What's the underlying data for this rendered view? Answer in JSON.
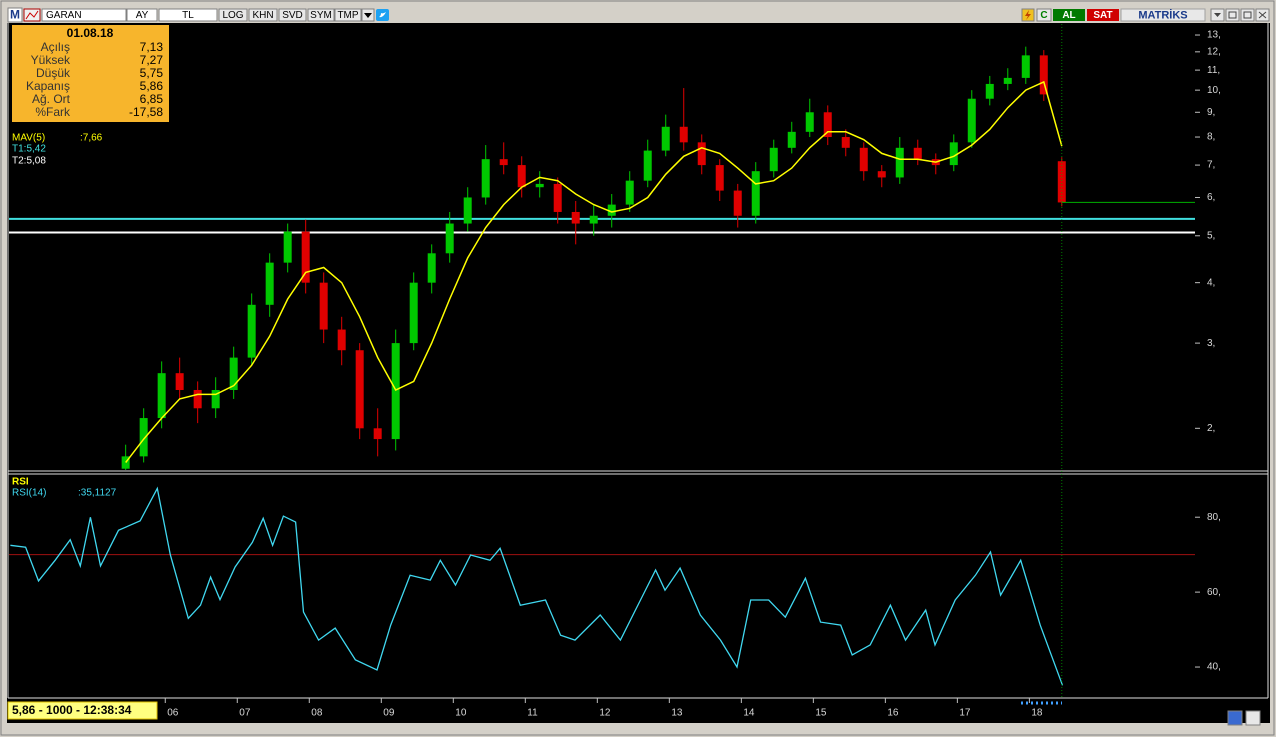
{
  "toolbar": {
    "logo": "M",
    "symbol": "GARAN",
    "period": "AY",
    "currency": "TL",
    "buttons": [
      "LOG",
      "KHN",
      "SVD",
      "SYM",
      "TMP"
    ],
    "refresh": "C",
    "buy": "AL",
    "sell": "SAT",
    "brand": "MATRİKS"
  },
  "info_box": {
    "date": "01.08.18",
    "rows": [
      {
        "label": "Açılış",
        "value": "7,13"
      },
      {
        "label": "Yüksek",
        "value": "7,27"
      },
      {
        "label": "Düşük",
        "value": "5,75"
      },
      {
        "label": "Kapanış",
        "value": "5,86"
      },
      {
        "label": "Ağ. Ort",
        "value": "6,85"
      },
      {
        "label": "%Fark",
        "value": "-17,58"
      }
    ]
  },
  "status": "5,86 - 1000 - 12:38:34",
  "chart_data": [
    {
      "type": "candlestick",
      "log_scale": true,
      "up_color": "#00c800",
      "down_color": "#e00000",
      "last_color": "#00b000",
      "x": [
        5.45,
        5.7,
        5.95,
        6.2,
        6.45,
        6.7,
        6.95,
        7.2,
        7.45,
        7.7,
        7.95,
        8.2,
        8.45,
        8.7,
        8.95,
        9.2,
        9.45,
        9.7,
        9.95,
        10.2,
        10.45,
        10.7,
        10.95,
        11.2,
        11.45,
        11.7,
        11.95,
        12.2,
        12.45,
        12.7,
        12.95,
        13.2,
        13.45,
        13.7,
        13.95,
        14.2,
        14.45,
        14.7,
        14.95,
        15.2,
        15.45,
        15.7,
        15.95,
        16.2,
        16.45,
        16.7,
        16.95,
        17.2,
        17.45,
        17.7,
        17.95,
        18.2,
        18.45
      ],
      "open": [
        1.65,
        1.75,
        2.1,
        2.6,
        2.4,
        2.2,
        2.4,
        2.8,
        3.6,
        4.4,
        5.1,
        4.0,
        3.2,
        2.9,
        2.0,
        1.9,
        3.0,
        4.0,
        4.6,
        5.3,
        6.0,
        7.2,
        7.0,
        6.3,
        6.4,
        5.6,
        5.3,
        5.5,
        5.8,
        6.5,
        7.5,
        8.4,
        7.8,
        7.0,
        6.2,
        5.5,
        6.8,
        7.6,
        8.2,
        9.0,
        8.0,
        7.6,
        6.8,
        6.6,
        7.6,
        7.2,
        7.0,
        7.8,
        9.6,
        10.3,
        10.6,
        11.8,
        7.13
      ],
      "high": [
        1.85,
        2.2,
        2.75,
        2.8,
        2.5,
        2.55,
        2.95,
        3.8,
        4.6,
        5.3,
        5.4,
        4.2,
        3.4,
        3.0,
        2.2,
        3.2,
        4.2,
        4.8,
        5.6,
        6.3,
        7.7,
        7.8,
        7.3,
        6.8,
        6.6,
        5.9,
        5.8,
        6.1,
        6.8,
        7.9,
        8.9,
        10.1,
        8.1,
        7.2,
        6.4,
        7.1,
        7.9,
        8.6,
        9.6,
        9.3,
        8.3,
        7.8,
        7.0,
        8.0,
        7.9,
        7.4,
        8.1,
        10.0,
        10.7,
        11.1,
        12.3,
        12.1,
        7.27
      ],
      "low": [
        1.6,
        1.7,
        2.0,
        2.3,
        2.05,
        2.1,
        2.3,
        2.7,
        3.4,
        4.2,
        3.8,
        3.0,
        2.7,
        1.9,
        1.75,
        1.8,
        2.9,
        3.8,
        4.4,
        5.1,
        5.8,
        6.7,
        6.0,
        6.0,
        5.3,
        4.8,
        5.0,
        5.2,
        5.6,
        6.3,
        7.3,
        7.5,
        6.7,
        5.9,
        5.2,
        5.3,
        6.6,
        7.4,
        8.0,
        7.7,
        7.3,
        6.5,
        6.3,
        6.4,
        7.0,
        6.7,
        6.8,
        7.6,
        9.3,
        10.0,
        10.3,
        9.5,
        5.75
      ],
      "close": [
        1.75,
        2.1,
        2.6,
        2.4,
        2.2,
        2.4,
        2.8,
        3.6,
        4.4,
        5.1,
        4.0,
        3.2,
        2.9,
        2.0,
        1.9,
        3.0,
        4.0,
        4.6,
        5.3,
        6.0,
        7.2,
        7.0,
        6.3,
        6.4,
        5.6,
        5.3,
        5.5,
        5.8,
        6.5,
        7.5,
        8.4,
        7.8,
        7.0,
        6.2,
        5.5,
        6.8,
        7.6,
        8.2,
        9.0,
        8.0,
        7.6,
        6.8,
        6.6,
        7.6,
        7.2,
        7.0,
        7.8,
        9.6,
        10.3,
        10.6,
        11.8,
        9.8,
        5.86
      ],
      "lines": [
        {
          "name": "MAV(5)",
          "value_label": ":7,66",
          "color": "#ffff00",
          "values": [
            1.7,
            1.9,
            2.1,
            2.3,
            2.35,
            2.35,
            2.45,
            2.7,
            3.1,
            3.7,
            4.2,
            4.3,
            4.0,
            3.4,
            2.8,
            2.4,
            2.5,
            3.0,
            3.7,
            4.5,
            5.2,
            5.8,
            6.3,
            6.6,
            6.5,
            6.1,
            5.8,
            5.6,
            5.7,
            6.0,
            6.7,
            7.3,
            7.6,
            7.4,
            6.9,
            6.4,
            6.5,
            6.9,
            7.6,
            8.2,
            8.2,
            7.9,
            7.4,
            7.2,
            7.2,
            7.1,
            7.3,
            7.7,
            8.3,
            9.2,
            10.0,
            10.4,
            7.66
          ]
        }
      ],
      "levels": [
        {
          "label": "T1:5,42",
          "value": 5.42,
          "color": "#40e0e0"
        },
        {
          "label": "T2:5,08",
          "value": 5.08,
          "color": "#ffffff"
        }
      ],
      "ylim": [
        1.64,
        13.7
      ],
      "yticks": [
        {
          "value": 2,
          "label": "2,"
        },
        {
          "value": 3,
          "label": "3,"
        },
        {
          "value": 4,
          "label": "4,"
        },
        {
          "value": 5,
          "label": "5,"
        },
        {
          "value": 6,
          "label": "6,"
        },
        {
          "value": 7,
          "label": "7,"
        },
        {
          "value": 8,
          "label": "8,"
        },
        {
          "value": 9,
          "label": "9,"
        },
        {
          "value": 10,
          "label": "10,"
        },
        {
          "value": 11,
          "label": "11,"
        },
        {
          "value": 12,
          "label": "12,"
        },
        {
          "value": 13,
          "label": "13,"
        }
      ],
      "xlim": [
        3.83,
        20.3
      ],
      "xticks": [
        {
          "value": 6,
          "label": "06"
        },
        {
          "value": 7,
          "label": "07"
        },
        {
          "value": 8,
          "label": "08"
        },
        {
          "value": 9,
          "label": "09"
        },
        10,
        11,
        12,
        13,
        14,
        15,
        16,
        17,
        18
      ]
    },
    {
      "type": "line",
      "title": "RSI",
      "xlim": [
        3.83,
        20.3
      ],
      "x": [
        3.85,
        4.06,
        4.24,
        4.47,
        4.68,
        4.82,
        4.96,
        5.1,
        5.35,
        5.65,
        5.89,
        6.07,
        6.32,
        6.49,
        6.63,
        6.76,
        6.97,
        7.21,
        7.36,
        7.49,
        7.64,
        7.81,
        7.92,
        8.13,
        8.36,
        8.64,
        8.94,
        9.13,
        9.4,
        9.68,
        9.82,
        10.03,
        10.24,
        10.51,
        10.65,
        10.93,
        11.28,
        11.49,
        11.69,
        12.04,
        12.32,
        12.6,
        12.81,
        12.94,
        13.15,
        13.43,
        13.71,
        13.94,
        14.13,
        14.38,
        14.61,
        14.89,
        15.1,
        15.38,
        15.54,
        15.79,
        16.07,
        16.28,
        16.56,
        16.69,
        16.97,
        17.25,
        17.46,
        17.6,
        17.88,
        18.15,
        18.46
      ],
      "series": [
        {
          "name": "RSI(14)",
          "value_label": ":35,1127",
          "color": "#40d8f0",
          "values": [
            72.5,
            72,
            63,
            68.5,
            74,
            67,
            80,
            67,
            76.5,
            79,
            87.7,
            70,
            53,
            56.5,
            64,
            58,
            66.7,
            73.3,
            79.7,
            72.5,
            80.3,
            78.7,
            54.7,
            47.2,
            50.4,
            41.9,
            39.2,
            51.2,
            64.5,
            63.2,
            68.5,
            61.9,
            69.9,
            68.5,
            71.7,
            56.5,
            57.9,
            48.5,
            47.2,
            53.9,
            47.2,
            57.9,
            65.9,
            60.5,
            66.4,
            53.9,
            47.2,
            40,
            57.9,
            57.9,
            53.3,
            63.7,
            52,
            51.2,
            43.2,
            45.9,
            56.5,
            47.2,
            55.2,
            45.9,
            57.9,
            64.5,
            70.7,
            59.2,
            68.5,
            51.2,
            35.1127
          ]
        }
      ],
      "reference": {
        "value": 70,
        "color": "#a01010"
      },
      "ylim": [
        32,
        91
      ],
      "yticks": [
        {
          "value": 40,
          "label": "40,"
        },
        {
          "value": 60,
          "label": "60,"
        },
        {
          "value": 80,
          "label": "80,"
        }
      ]
    }
  ]
}
